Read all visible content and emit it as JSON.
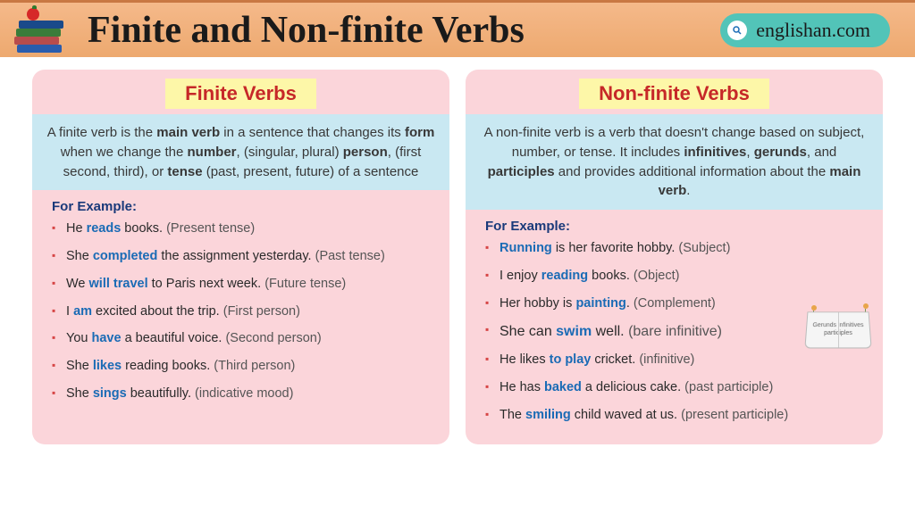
{
  "header": {
    "title": "Finite and Non-finite Verbs",
    "site": "englishan.com",
    "bg_gradient": [
      "#f5b98a",
      "#eda96f"
    ],
    "border_top": "#c97843"
  },
  "cards": {
    "finite": {
      "title": "Finite Verbs",
      "definition_html": "A finite verb is the <span class='bold'>main verb</span> in a sentence that changes its <span class='bold'>form</span> when we change the <span class='bold'>number</span>, (singular, plural) <span class='bold'>person</span>, (first second, third), or <span class='bold'>tense</span> (past, present, future) of a sentence",
      "examples_label": "For Example:",
      "examples": [
        "He <span class='hl'>reads</span> books. <span class='note'>(Present tense)</span>",
        "She <span class='hl'>completed</span> the assignment yesterday. <span class='note'>(Past tense)</span>",
        "We <span class='hl'>will travel</span> to Paris next week. <span class='note'>(Future tense)</span>",
        "I <span class='hl'>am</span> excited about the trip. <span class='note'>(First person)</span>",
        "You <span class='hl'>have</span> a beautiful voice. <span class='note'>(Second person)</span>",
        "She <span class='hl'>likes</span> reading books. <span class='note'>(Third person)</span>",
        "She <span class='hl'>sings</span> beautifully. <span class='note'>(indicative mood)</span>"
      ]
    },
    "nonfinite": {
      "title": "Non-finite Verbs",
      "definition_html": "A non-finite verb is a verb that doesn't change based on subject, number, or tense. It includes <span class='bold'>infinitives</span>, <span class='bold'>gerunds</span>, and <span class='bold'>participles</span> and provides additional information about the <span class='bold'>main verb</span>.",
      "examples_label": "For Example:",
      "examples": [
        "<span class='hl'>Running</span> is her favorite hobby. <span class='note'>(Subject)</span>",
        "I enjoy <span class='hl'>reading</span> books. <span class='note'>(Object)</span>",
        "Her hobby is <span class='hl'>painting</span>. <span class='note'>(Complement)</span>",
        "<span class='big'>She can <span class='hl'>swim</span> well. <span class='note'>(bare infinitive)</span></span>",
        "He likes <span class='hl'>to play</span> cricket. <span class='note'>(infinitive)</span>",
        "He has <span class='hl'>baked</span> a delicious cake. <span class='note'>(past participle)</span>",
        "The <span class='hl'>smiling</span> child waved at us. <span class='note'>(present participle)</span>"
      ],
      "badge_text": "Gerunds infinitives participles"
    }
  },
  "colors": {
    "card_bg": "#fbd5da",
    "title_bg": "#fdf7a8",
    "title_fg": "#c62828",
    "def_bg": "#c9e8f2",
    "bullet": "#d64545",
    "highlight": "#1a6bb5",
    "label": "#1a3a7a",
    "pill_bg": "#52c4b8"
  }
}
